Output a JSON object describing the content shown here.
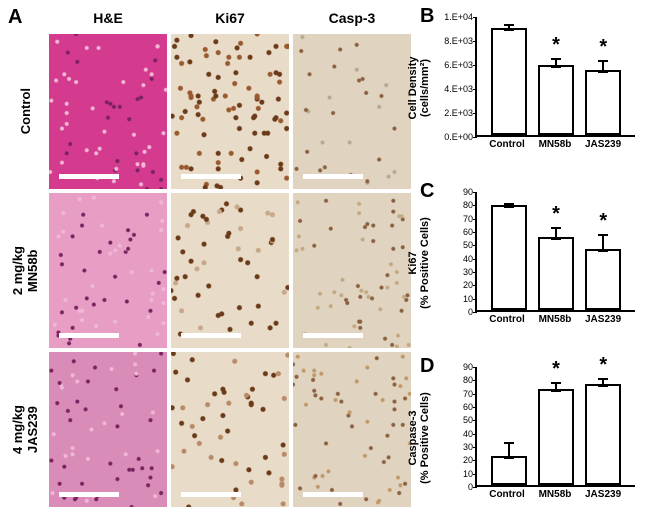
{
  "panelA": {
    "label": "A",
    "columnHeaders": [
      "H&E",
      "Ki67",
      "Casp-3"
    ],
    "rowLabels": [
      "Control",
      "2 mg/kg\nMN58b",
      "4 mg/kg\nJAS239"
    ],
    "micrographs": {
      "he_colors": [
        "#d43a8e",
        "#e89ec4",
        "#d98cb8"
      ],
      "ki67_colors": [
        "#9a5a2f",
        "#c7a88a",
        "#b88a68"
      ],
      "casp3_colors": [
        "#b8a890",
        "#c4a884",
        "#c0986a"
      ]
    },
    "scale_bar_color": "#ffffff"
  },
  "panelB": {
    "label": "B",
    "ylabel": "Cell Density\n(cells/mm²)",
    "ylim": [
      0,
      10000
    ],
    "yticks": [
      0,
      2000,
      4000,
      6000,
      8000,
      10000
    ],
    "ytick_labels": [
      "0.E+00",
      "2.E+03",
      "4.E+03",
      "6.E+03",
      "8.E+03",
      "1.E+04"
    ],
    "categories": [
      "Control",
      "MN58b",
      "JAS239"
    ],
    "values": [
      8900,
      5800,
      5400
    ],
    "errors": [
      400,
      700,
      900
    ],
    "significant": [
      false,
      true,
      true
    ],
    "bar_fill": "#ffffff",
    "bar_border": "#000000",
    "label_fontsize": 11
  },
  "panelC": {
    "label": "C",
    "ylabel": "Ki67\n(% Positive Cells)",
    "ylim": [
      0,
      90
    ],
    "yticks": [
      0,
      10,
      20,
      30,
      40,
      50,
      60,
      70,
      80,
      90
    ],
    "ytick_labels": [
      "0",
      "10",
      "20",
      "30",
      "40",
      "50",
      "60",
      "70",
      "80",
      "90"
    ],
    "categories": [
      "Control",
      "MN58b",
      "JAS239"
    ],
    "values": [
      79,
      55,
      46
    ],
    "errors": [
      2,
      8,
      12
    ],
    "significant": [
      false,
      true,
      true
    ],
    "bar_fill": "#ffffff",
    "bar_border": "#000000",
    "label_fontsize": 11
  },
  "panelD": {
    "label": "D",
    "ylabel": "Caspase-3\n(% Positive Cells)",
    "ylim": [
      0,
      90
    ],
    "yticks": [
      0,
      10,
      20,
      30,
      40,
      50,
      60,
      70,
      80,
      90
    ],
    "ytick_labels": [
      "0",
      "10",
      "20",
      "30",
      "40",
      "50",
      "60",
      "70",
      "80",
      "90"
    ],
    "categories": [
      "Control",
      "MN58b",
      "JAS239"
    ],
    "values": [
      22,
      72,
      76
    ],
    "errors": [
      11,
      6,
      5
    ],
    "significant": [
      false,
      true,
      true
    ],
    "bar_fill": "#ffffff",
    "bar_border": "#000000",
    "label_fontsize": 11
  }
}
